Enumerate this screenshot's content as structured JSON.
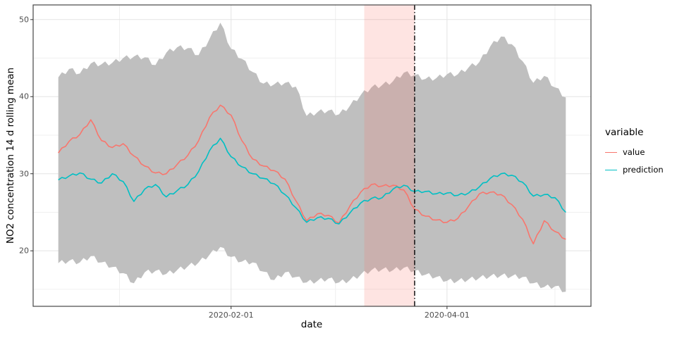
{
  "y_axis": {
    "label": "NO2 concentration 14 d rolling mean",
    "ticks": [
      20,
      30,
      40,
      50
    ],
    "minor": [
      15,
      25,
      35,
      45
    ],
    "domain": [
      12.8,
      51.9
    ]
  },
  "x_axis": {
    "label": "date",
    "ticks": [
      "2020-02-01",
      "2020-04-01"
    ],
    "minor": [
      "2020-01-01",
      "2020-03-01",
      "2020-05-01"
    ],
    "domain": [
      "2019-12-08",
      "2020-05-11"
    ]
  },
  "legend": {
    "title": "variable",
    "items": [
      {
        "label": "value",
        "color": "#F8766D"
      },
      {
        "label": "prediction",
        "color": "#00BFC4"
      }
    ]
  },
  "annotations": {
    "band": {
      "start": "2020-03-09",
      "end": "2020-03-23",
      "color": "#F8766D",
      "opacity": 0.2
    },
    "vline": {
      "date": "2020-03-23",
      "color": "#000000",
      "style": "dash-dot"
    }
  },
  "style": {
    "ribbon_fill": "#BFBFBF",
    "grid_major": "#E3E3E3",
    "grid_minor": "#F0F0F0",
    "panel_border": "#454545",
    "tick_color": "#333333",
    "tick_label_color": "#4D4D4D"
  },
  "chart_data": {
    "type": "line",
    "title": "",
    "xlabel": "date",
    "ylabel": "NO2 concentration 14 d rolling mean",
    "ylim": [
      12.8,
      51.9
    ],
    "grid": true,
    "legend_position": "right",
    "x": [
      "2019-12-15",
      "2019-12-18",
      "2019-12-21",
      "2019-12-24",
      "2019-12-27",
      "2019-12-30",
      "2020-01-02",
      "2020-01-05",
      "2020-01-08",
      "2020-01-11",
      "2020-01-14",
      "2020-01-17",
      "2020-01-20",
      "2020-01-23",
      "2020-01-26",
      "2020-01-29",
      "2020-02-01",
      "2020-02-04",
      "2020-02-07",
      "2020-02-10",
      "2020-02-13",
      "2020-02-16",
      "2020-02-19",
      "2020-02-22",
      "2020-02-25",
      "2020-02-28",
      "2020-03-02",
      "2020-03-05",
      "2020-03-08",
      "2020-03-11",
      "2020-03-14",
      "2020-03-17",
      "2020-03-20",
      "2020-03-23",
      "2020-03-26",
      "2020-03-29",
      "2020-04-01",
      "2020-04-04",
      "2020-04-07",
      "2020-04-10",
      "2020-04-13",
      "2020-04-16",
      "2020-04-19",
      "2020-04-22",
      "2020-04-25",
      "2020-04-28",
      "2020-05-01",
      "2020-05-04"
    ],
    "series": [
      {
        "name": "value",
        "color": "#F8766D",
        "values": [
          32.7,
          34.2,
          35.1,
          37.0,
          34.3,
          33.4,
          33.9,
          32.3,
          31.0,
          30.1,
          30.0,
          31.2,
          32.4,
          34.3,
          37.3,
          38.9,
          37.6,
          34.3,
          31.9,
          31.0,
          30.4,
          29.3,
          26.5,
          23.9,
          24.8,
          24.6,
          23.6,
          25.8,
          27.6,
          28.6,
          28.4,
          28.5,
          27.9,
          25.4,
          24.5,
          24.0,
          23.7,
          24.2,
          25.8,
          27.4,
          27.6,
          27.3,
          26.0,
          24.1,
          20.9,
          23.9,
          22.5,
          21.5
        ]
      },
      {
        "name": "prediction",
        "color": "#00BFC4",
        "values": [
          29.2,
          29.7,
          30.1,
          29.3,
          28.8,
          30.0,
          29.0,
          26.4,
          28.0,
          28.6,
          27.0,
          27.8,
          28.6,
          30.3,
          33.0,
          34.6,
          32.2,
          30.9,
          30.0,
          29.4,
          28.7,
          27.3,
          25.6,
          23.7,
          24.3,
          24.2,
          23.5,
          24.9,
          26.2,
          26.8,
          26.9,
          28.0,
          28.5,
          27.7,
          27.7,
          27.4,
          27.5,
          27.2,
          27.5,
          28.3,
          29.4,
          30.0,
          29.8,
          28.9,
          27.1,
          27.3,
          26.9,
          25.0
        ]
      }
    ],
    "ribbon": {
      "name": "prediction interval",
      "fill": "#BFBFBF",
      "upper": [
        42.5,
        43.6,
        43.0,
        44.3,
        44.2,
        44.4,
        45.0,
        45.2,
        45.1,
        44.1,
        45.7,
        46.4,
        46.3,
        45.4,
        47.5,
        49.6,
        46.2,
        44.9,
        43.2,
        41.7,
        41.6,
        41.8,
        41.3,
        37.5,
        38.0,
        38.2,
        37.7,
        38.8,
        40.2,
        41.2,
        41.5,
        42.0,
        43.1,
        42.8,
        42.3,
        42.4,
        42.9,
        42.9,
        43.8,
        44.5,
        46.5,
        47.8,
        46.8,
        44.6,
        41.8,
        42.7,
        41.2,
        39.9
      ],
      "lower": [
        18.4,
        18.7,
        18.5,
        19.3,
        18.5,
        17.9,
        17.1,
        15.8,
        17.2,
        17.4,
        17.0,
        17.5,
        18.0,
        18.5,
        19.5,
        20.5,
        19.2,
        18.6,
        18.5,
        17.3,
        16.2,
        17.2,
        16.6,
        15.9,
        16.1,
        16.4,
        15.9,
        16.2,
        16.9,
        17.5,
        17.6,
        17.5,
        17.8,
        17.4,
        16.9,
        16.6,
        16.1,
        16.1,
        16.3,
        16.5,
        16.7,
        16.8,
        16.7,
        16.6,
        15.8,
        15.3,
        15.4,
        14.7
      ]
    }
  }
}
